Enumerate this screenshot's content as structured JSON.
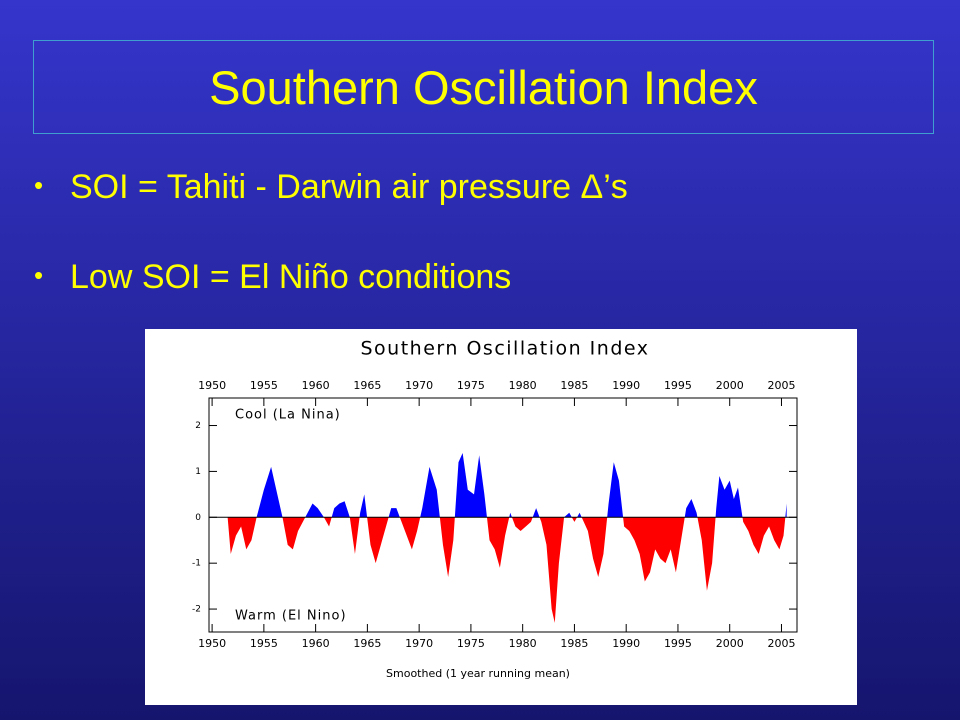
{
  "slide": {
    "title": "Southern Oscillation Index",
    "bullets": [
      "SOI = Tahiti - Darwin air pressure Δ’s",
      "Low SOI = El Niño conditions"
    ]
  },
  "chart_data": {
    "type": "area",
    "title": "Southern Oscillation Index",
    "xlabel": "Smoothed (1 year running mean)",
    "annotations": [
      "Cool (La Nina)",
      "Warm (El Nino)"
    ],
    "positive_color": "#0000ff",
    "negative_color": "#ff0000",
    "xlim": [
      1949.7,
      2006.5
    ],
    "xticks": [
      1950,
      1955,
      1960,
      1965,
      1970,
      1975,
      1980,
      1985,
      1990,
      1995,
      2000,
      2005
    ],
    "ylim": [
      -2.5,
      2.6
    ],
    "yticks": [
      -2,
      -1,
      0,
      1,
      2
    ],
    "x": [
      1951.5,
      1951.8,
      1952.3,
      1952.8,
      1953.3,
      1953.8,
      1954.3,
      1955,
      1955.7,
      1956.3,
      1956.8,
      1957.3,
      1957.8,
      1958.3,
      1959,
      1959.7,
      1960.2,
      1960.8,
      1961.3,
      1961.8,
      1962.3,
      1962.8,
      1963.3,
      1963.8,
      1964.3,
      1964.7,
      1965.3,
      1965.8,
      1966.3,
      1966.8,
      1967.3,
      1967.8,
      1968.3,
      1968.8,
      1969.3,
      1969.8,
      1970.3,
      1971,
      1971.7,
      1972.3,
      1972.8,
      1973.3,
      1973.8,
      1974.2,
      1974.7,
      1975.3,
      1975.8,
      1976.3,
      1976.8,
      1977.3,
      1977.8,
      1978.3,
      1978.8,
      1979.3,
      1979.8,
      1980.3,
      1980.8,
      1981.3,
      1981.8,
      1982.3,
      1982.8,
      1983.1,
      1983.5,
      1984,
      1984.5,
      1985,
      1985.5,
      1986.3,
      1986.8,
      1987.3,
      1987.8,
      1988.3,
      1988.8,
      1989.3,
      1989.8,
      1990.3,
      1990.8,
      1991.3,
      1991.8,
      1992.3,
      1992.8,
      1993.3,
      1993.8,
      1994.3,
      1994.8,
      1995.3,
      1995.8,
      1996.3,
      1996.8,
      1997.3,
      1997.8,
      1998.3,
      1998.7,
      1999,
      1999.5,
      2000,
      2000.4,
      2000.8,
      2001.3,
      2001.8,
      2002.3,
      2002.8,
      2003.3,
      2003.8,
      2004.3,
      2004.8,
      2005.2,
      2005.5
    ],
    "values": [
      0,
      -0.8,
      -0.4,
      -0.2,
      -0.7,
      -0.5,
      0,
      0.6,
      1.1,
      0.5,
      0,
      -0.6,
      -0.7,
      -0.3,
      0,
      0.3,
      0.2,
      0,
      -0.2,
      0.2,
      0.3,
      0.35,
      0,
      -0.8,
      0.1,
      0.5,
      -0.6,
      -1.0,
      -0.6,
      -0.2,
      0.2,
      0.2,
      -0.1,
      -0.4,
      -0.7,
      -0.3,
      0.2,
      1.1,
      0.6,
      -0.6,
      -1.3,
      -0.5,
      1.2,
      1.4,
      0.6,
      0.5,
      1.35,
      0.5,
      -0.5,
      -0.7,
      -1.1,
      -0.4,
      0.1,
      -0.2,
      -0.3,
      -0.2,
      -0.1,
      0.2,
      -0.1,
      -0.6,
      -2.0,
      -2.3,
      -1.0,
      0,
      0.1,
      -0.1,
      0.1,
      -0.3,
      -0.9,
      -1.3,
      -0.8,
      0.3,
      1.2,
      0.8,
      -0.2,
      -0.3,
      -0.5,
      -0.8,
      -1.4,
      -1.2,
      -0.7,
      -0.9,
      -1.0,
      -0.7,
      -1.2,
      -0.5,
      0.2,
      0.4,
      0.1,
      -0.5,
      -1.6,
      -1.0,
      0.2,
      0.9,
      0.6,
      0.8,
      0.4,
      0.65,
      -0.1,
      -0.3,
      -0.6,
      -0.8,
      -0.4,
      -0.2,
      -0.5,
      -0.7,
      -0.4,
      0.3
    ]
  }
}
